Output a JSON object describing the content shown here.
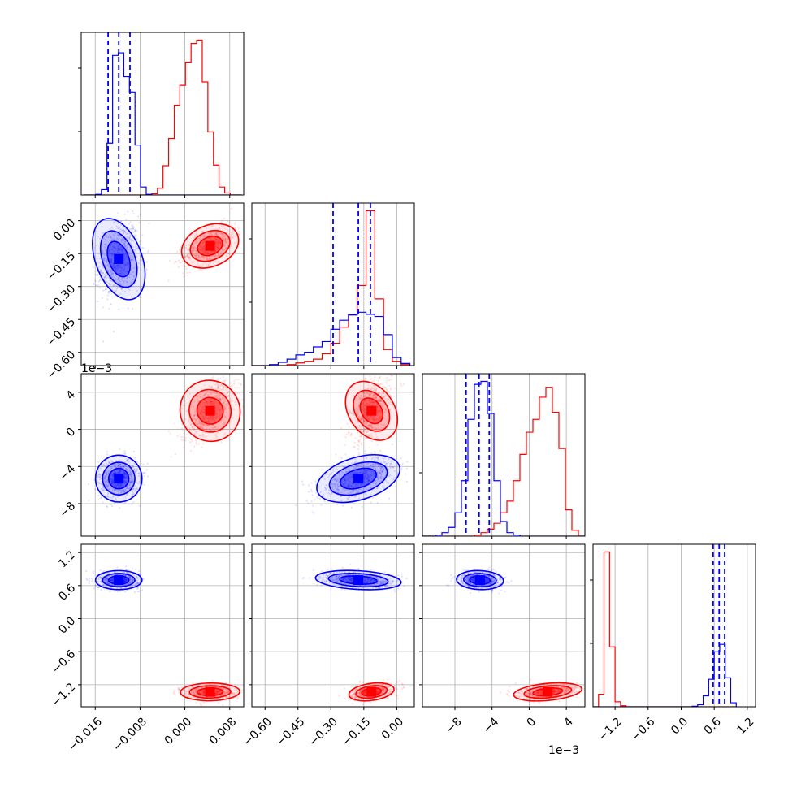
{
  "chart_data": {
    "type": "corner",
    "parameters": [
      {
        "range": [
          -0.0185,
          0.0105
        ],
        "ticks": [
          -0.016,
          -0.008,
          0.0,
          0.008
        ],
        "tick_labels": [
          "−0.016",
          "−0.008",
          "0.000",
          "0.008"
        ]
      },
      {
        "range": [
          -0.66,
          0.08
        ],
        "ticks": [
          -0.6,
          -0.45,
          -0.3,
          -0.15,
          0.0
        ],
        "tick_labels": [
          "−0.60",
          "−0.45",
          "−0.30",
          "−0.15",
          "0.00"
        ]
      },
      {
        "range": [
          -11.5,
          6.0
        ],
        "ticks": [
          -8,
          -4,
          0,
          4
        ],
        "tick_labels": [
          "−8",
          "−4",
          "0",
          "4"
        ],
        "offset_label": "1e−3"
      },
      {
        "range": [
          -1.6,
          1.35
        ],
        "ticks": [
          -1.2,
          -0.6,
          0.0,
          0.6,
          1.2
        ],
        "tick_labels": [
          "−1.2",
          "−0.6",
          "0.0",
          "0.6",
          "1.2"
        ]
      }
    ],
    "series": [
      {
        "color": "#0000ff",
        "mean": [
          -0.0118,
          -0.175,
          -5.3,
          0.7
        ],
        "std": [
          0.0018,
          0.085,
          1.1,
          0.075
        ],
        "quantiles": [
          [
            -0.0137,
            -0.0118,
            -0.0098
          ],
          [
            -0.29,
            -0.175,
            -0.12
          ],
          [
            -6.8,
            -5.4,
            -4.3
          ],
          [
            0.58,
            0.69,
            0.79
          ]
        ]
      },
      {
        "color": "#ff0000",
        "mean": [
          0.0045,
          -0.115,
          2.0,
          -1.33
        ],
        "std": [
          0.0023,
          0.045,
          1.6,
          0.07
        ],
        "quantiles": []
      }
    ],
    "marginal_hists": [
      {
        "bins": [
          -0.0179,
          -0.0169,
          -0.0159,
          -0.0149,
          -0.0139,
          -0.0129,
          -0.0119,
          -0.0109,
          -0.0099,
          -0.0089,
          -0.0079,
          -0.0069,
          -0.0059,
          -0.0049,
          -0.0039,
          -0.0029,
          -0.0019,
          -0.0009,
          0.0001,
          0.0011,
          0.0021,
          0.0031,
          0.0041,
          0.0051,
          0.0061,
          0.0071,
          0.0081,
          0.0091,
          0.0101
        ],
        "blue": [
          0,
          0,
          1,
          8,
          78,
          210,
          214,
          178,
          155,
          75,
          12,
          1,
          0,
          0,
          0,
          0,
          0,
          0,
          0,
          0,
          0,
          0,
          0,
          0,
          0,
          0,
          0,
          0
        ],
        "red": [
          0,
          0,
          0,
          0,
          0,
          0,
          0,
          0,
          0,
          0,
          0,
          0,
          2,
          10,
          44,
          85,
          135,
          165,
          200,
          228,
          233,
          170,
          95,
          45,
          12,
          3,
          0,
          0
        ]
      },
      {
        "bins": [
          -0.66,
          -0.62,
          -0.58,
          -0.54,
          -0.5,
          -0.46,
          -0.42,
          -0.38,
          -0.34,
          -0.3,
          -0.26,
          -0.22,
          -0.18,
          -0.14,
          -0.1,
          -0.06,
          -0.02,
          0.02,
          0.06
        ],
        "blue": [
          0,
          0,
          2,
          6,
          12,
          20,
          25,
          35,
          45,
          68,
          85,
          95,
          100,
          96,
          92,
          58,
          15,
          4
        ],
        "red": [
          0,
          0,
          0,
          0,
          2,
          5,
          8,
          12,
          22,
          42,
          72,
          95,
          150,
          290,
          125,
          30,
          8,
          2
        ]
      },
      {
        "bins": [
          -11.5,
          -10.8,
          -10.1,
          -9.4,
          -8.7,
          -8.0,
          -7.3,
          -6.6,
          -5.9,
          -5.2,
          -4.5,
          -3.8,
          -3.1,
          -2.4,
          -1.7,
          -1.0,
          -0.3,
          0.4,
          1.1,
          1.8,
          2.5,
          3.2,
          3.9,
          4.6,
          5.3,
          6.0
        ],
        "blue": [
          0,
          0,
          2,
          6,
          15,
          40,
          95,
          200,
          260,
          265,
          210,
          95,
          25,
          6,
          2,
          0,
          0,
          0,
          0,
          0,
          0,
          0,
          0,
          0,
          0
        ],
        "red": [
          0,
          0,
          0,
          0,
          0,
          0,
          0,
          0,
          2,
          6,
          12,
          22,
          40,
          60,
          95,
          140,
          178,
          200,
          238,
          255,
          212,
          150,
          45,
          10,
          0
        ]
      },
      {
        "bins": [
          -1.6,
          -1.5,
          -1.4,
          -1.3,
          -1.2,
          -1.1,
          -1.0,
          -0.9,
          -0.8,
          -0.7,
          -0.6,
          -0.5,
          -0.4,
          -0.3,
          -0.2,
          -0.1,
          0.0,
          0.1,
          0.2,
          0.3,
          0.4,
          0.5,
          0.6,
          0.7,
          0.8,
          0.9,
          1.0
        ],
        "blue": [
          0,
          0,
          0,
          0,
          0,
          0,
          0,
          0,
          0,
          0,
          0,
          0,
          0,
          0,
          0,
          0,
          0,
          0,
          1,
          4,
          22,
          55,
          110,
          125,
          58,
          8
        ],
        "red": [
          0,
          25,
          310,
          120,
          10,
          2,
          0,
          0,
          0,
          0,
          0,
          0,
          0,
          0,
          0,
          0,
          0,
          0,
          0,
          0,
          0,
          0,
          0,
          0,
          0,
          0
        ]
      }
    ],
    "grid": true,
    "legend": "none"
  }
}
